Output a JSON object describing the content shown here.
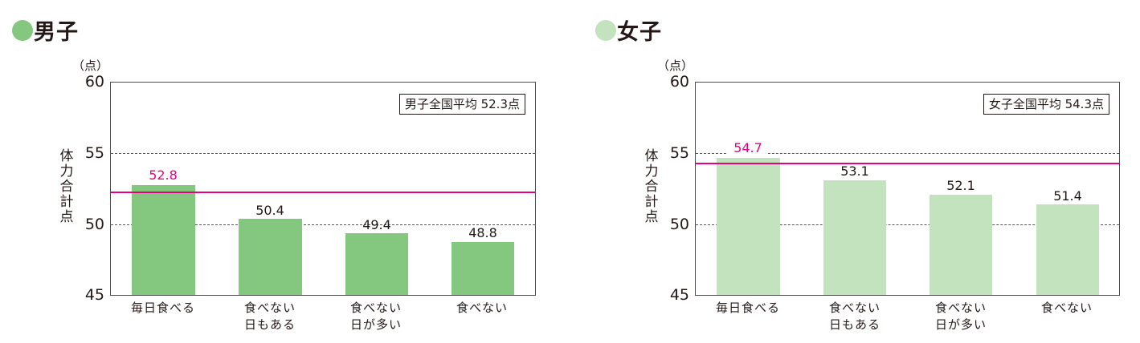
{
  "chart_data": [
    {
      "type": "bar",
      "title": "男子",
      "title_marker_color": "#84c77f",
      "unit_label": "（点）",
      "ylabel": "体力合計点",
      "xlabel": "",
      "ylim": [
        45,
        60
      ],
      "yticks": [
        "60",
        "55",
        "50",
        "45"
      ],
      "grid": "dashed at 50 and 55",
      "categories": [
        "毎日食べる",
        "食べない日もある",
        "食べない日が多い",
        "食べない"
      ],
      "category_lines": [
        [
          "毎日食べる"
        ],
        [
          "食べない",
          "日もある"
        ],
        [
          "食べない",
          "日が多い"
        ],
        [
          "食べない"
        ]
      ],
      "values": [
        52.8,
        50.4,
        49.4,
        48.8
      ],
      "value_labels": [
        "52.8",
        "50.4",
        "49.4",
        "48.8"
      ],
      "bar_color": "#84c77f",
      "highlight_label_color": "#e4007f",
      "reference_line": {
        "value": 52.3,
        "label": "男子全国平均 52.3点",
        "color": "#e4007f"
      }
    },
    {
      "type": "bar",
      "title": "女子",
      "title_marker_color": "#c3e2be",
      "unit_label": "（点）",
      "ylabel": "体力合計点",
      "xlabel": "",
      "ylim": [
        45,
        60
      ],
      "yticks": [
        "60",
        "55",
        "50",
        "45"
      ],
      "grid": "dashed at 50 and 55",
      "categories": [
        "毎日食べる",
        "食べない日もある",
        "食べない日が多い",
        "食べない"
      ],
      "category_lines": [
        [
          "毎日食べる"
        ],
        [
          "食べない",
          "日もある"
        ],
        [
          "食べない",
          "日が多い"
        ],
        [
          "食べない"
        ]
      ],
      "values": [
        54.7,
        53.1,
        52.1,
        51.4
      ],
      "value_labels": [
        "54.7",
        "53.1",
        "52.1",
        "51.4"
      ],
      "bar_color": "#c3e2be",
      "highlight_label_color": "#e4007f",
      "reference_line": {
        "value": 54.3,
        "label": "女子全国平均 54.3点",
        "color": "#e4007f"
      }
    }
  ]
}
